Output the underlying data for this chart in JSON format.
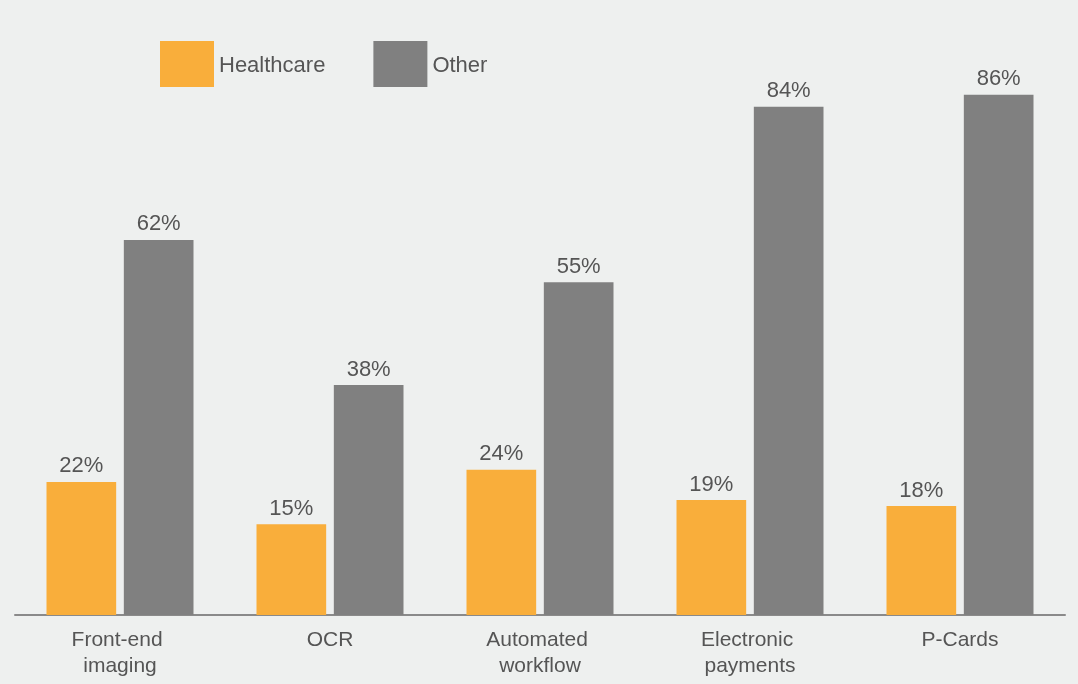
{
  "chart_data": {
    "type": "bar",
    "categories": [
      "Front-end imaging",
      "OCR",
      "Automated workflow",
      "Electronic payments",
      "P-Cards"
    ],
    "series": [
      {
        "name": "Healthcare",
        "color": "#f9ae3b",
        "values": [
          22,
          15,
          24,
          19,
          18
        ],
        "value_labels": [
          "22%",
          "15%",
          "24%",
          "19%",
          "18%"
        ]
      },
      {
        "name": "Other",
        "color": "#808080",
        "values": [
          62,
          38,
          55,
          84,
          86
        ],
        "value_labels": [
          "62%",
          "38%",
          "55%",
          "84%",
          "86%"
        ]
      }
    ],
    "legend": "top left"
  }
}
